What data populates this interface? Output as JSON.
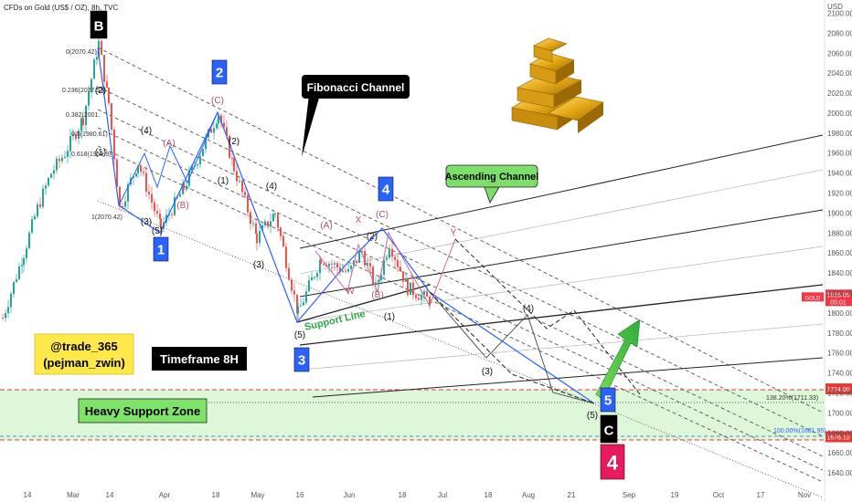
{
  "header": {
    "title": "CFDs on Gold (US$ / OZ), 8h, TVC"
  },
  "colors": {
    "up": "#26a69a",
    "down": "#ef5350",
    "blue": "#2962ff",
    "accent": "#d61f69",
    "zone": "#d8f5d0",
    "price_tag": "#f23645",
    "red_tag": "#e53935"
  },
  "labels": {
    "fib_channel": "Fibonacci Channel",
    "ascending_channel": "Ascending Channel",
    "support_line": "Support Line",
    "handle_1": "@trade_365",
    "handle_2": "(pejman_zwin)",
    "timeframe": "Timeframe 8H",
    "heavy_zone": "Heavy Support Zone",
    "fib_0": "0(2070.42)",
    "fib_236": "0.236(2027.53)",
    "fib_382": "0.382(2001.",
    "fib_5": "0.5(1980.61)",
    "fib_618": "0.618(1959.9)",
    "fib_1": "1(2070.42)",
    "ext_138": "138.20%(1711.33)",
    "ext_100": "100.00%(1681.95)"
  },
  "badges": [
    {
      "text": "B",
      "style": "black"
    },
    {
      "text": "2",
      "style": "blue"
    },
    {
      "text": "1",
      "style": "blue"
    },
    {
      "text": "4",
      "style": "blue"
    },
    {
      "text": "3",
      "style": "blue"
    },
    {
      "text": "5",
      "style": "blue"
    },
    {
      "text": "C",
      "style": "black"
    },
    {
      "text": "4",
      "style": "red"
    }
  ],
  "wave_labels": [
    "(2)",
    "(1)",
    "(4)",
    "(A)",
    "(B)",
    "(C)",
    "(3)",
    "(5)",
    "(2)",
    "(1)",
    "(4)",
    "(3)",
    "(A)",
    "X",
    "(C)",
    "W",
    "(B)",
    "(2)",
    "Y",
    "(1)",
    "(5)",
    "(4)",
    "(3)",
    "(5)"
  ],
  "chart_data": {
    "type": "candlestick",
    "symbol": "GOLD",
    "timeframe": "8h",
    "ylim": [
      1630,
      2105
    ],
    "y_ticks": [
      2100,
      2080,
      2060,
      2040,
      2020,
      2000,
      1980,
      1960,
      1940,
      1920,
      1900,
      1880,
      1860,
      1840,
      1820,
      1800,
      1780,
      1760,
      1740,
      1720,
      1700,
      1680,
      1660,
      1640
    ],
    "y_unit": "USD",
    "x_ticks": [
      "14",
      "Mar",
      "14",
      "Apr",
      "18",
      "May",
      "16",
      "Jun",
      "18",
      "Jul",
      "18",
      "Aug",
      "21",
      "Sep",
      "19",
      "Oct",
      "17",
      "Nov"
    ],
    "last_price": 1816.06,
    "countdown": "05:01",
    "price_tags": [
      1724.0,
      1676.1
    ],
    "pivot_B": 2070.42,
    "fib_levels": [
      {
        "ratio": 0,
        "price": 2070.42
      },
      {
        "ratio": 0.236,
        "price": 2027.53
      },
      {
        "ratio": 0.382,
        "price": 2001
      },
      {
        "ratio": 0.5,
        "price": 1980.61
      },
      {
        "ratio": 0.618,
        "price": 1959.9
      },
      {
        "ratio": 1,
        "price": 2070.42
      }
    ],
    "extensions": [
      {
        "ratio": 1.382,
        "price": 1711.33
      },
      {
        "ratio": 1.0,
        "price": 1681.95
      }
    ],
    "support_zone": [
      1676.1,
      1724.0
    ]
  }
}
